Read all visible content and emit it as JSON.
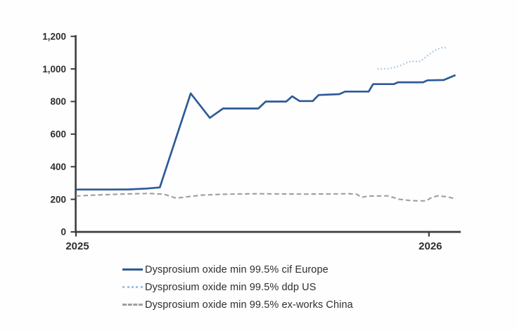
{
  "chart_data": {
    "type": "line",
    "title": "",
    "xlabel": "",
    "ylabel": "",
    "x_unit": "months since Jan 2025",
    "xlim": [
      0,
      13.08
    ],
    "ylim": [
      0,
      1200
    ],
    "grid": false,
    "legend_position": "bottom",
    "axis_color": "#3d3d3d",
    "text_color": "#2e2e2e",
    "y_ticks": [
      {
        "value": 0,
        "label": "0"
      },
      {
        "value": 200,
        "label": "200"
      },
      {
        "value": 400,
        "label": "400"
      },
      {
        "value": 600,
        "label": "600"
      },
      {
        "value": 800,
        "label": "800"
      },
      {
        "value": 1000,
        "label": "1,000"
      },
      {
        "value": 1200,
        "label": "1,200"
      }
    ],
    "x_ticks": [
      {
        "value": 0,
        "label": "2025"
      },
      {
        "value": 12,
        "label": "2026"
      }
    ],
    "series": [
      {
        "name": "Dysprosium oxide min 99.5% cif Europe",
        "line_style": "solid",
        "color": "#2e5a97",
        "width": 2.7,
        "points": [
          [
            0,
            260
          ],
          [
            0.6,
            260
          ],
          [
            1.2,
            260
          ],
          [
            1.8,
            261
          ],
          [
            2.4,
            266
          ],
          [
            2.85,
            273
          ],
          [
            3.9,
            850
          ],
          [
            4.55,
            700
          ],
          [
            5.0,
            757
          ],
          [
            5.6,
            757
          ],
          [
            6.2,
            757
          ],
          [
            6.45,
            800
          ],
          [
            7.15,
            800
          ],
          [
            7.35,
            832
          ],
          [
            7.6,
            803
          ],
          [
            8.05,
            803
          ],
          [
            8.25,
            840
          ],
          [
            8.95,
            845
          ],
          [
            9.15,
            861
          ],
          [
            9.95,
            861
          ],
          [
            10.1,
            907
          ],
          [
            10.8,
            907
          ],
          [
            10.95,
            918
          ],
          [
            11.8,
            918
          ],
          [
            11.95,
            930
          ],
          [
            12.5,
            932
          ],
          [
            12.9,
            962
          ]
        ]
      },
      {
        "name": "Dysprosium oxide min 99.5% ddp US",
        "line_style": "dotted",
        "color": "#9cc2e5",
        "width": 2.3,
        "points": [
          [
            10.25,
            1000
          ],
          [
            10.45,
            1000
          ],
          [
            10.65,
            1003
          ],
          [
            10.9,
            1013
          ],
          [
            11.1,
            1026
          ],
          [
            11.3,
            1043
          ],
          [
            11.5,
            1048
          ],
          [
            11.65,
            1043
          ],
          [
            11.8,
            1060
          ],
          [
            12.0,
            1087
          ],
          [
            12.15,
            1108
          ],
          [
            12.3,
            1122
          ],
          [
            12.45,
            1130
          ],
          [
            12.62,
            1130
          ]
        ]
      },
      {
        "name": "Dysprosium oxide min 99.5% ex-works China",
        "line_style": "dashed",
        "color": "#9e9e9e",
        "width": 2.1,
        "points": [
          [
            0,
            220
          ],
          [
            0.5,
            225
          ],
          [
            1.0,
            228
          ],
          [
            1.5,
            232
          ],
          [
            2.0,
            234
          ],
          [
            2.5,
            236
          ],
          [
            3.0,
            231
          ],
          [
            3.4,
            207
          ],
          [
            3.8,
            216
          ],
          [
            4.3,
            226
          ],
          [
            5.0,
            231
          ],
          [
            5.6,
            233
          ],
          [
            6.2,
            234
          ],
          [
            7.0,
            233
          ],
          [
            7.8,
            232
          ],
          [
            8.6,
            233
          ],
          [
            9.3,
            234
          ],
          [
            9.55,
            231
          ],
          [
            9.7,
            212
          ],
          [
            9.95,
            220
          ],
          [
            10.6,
            221
          ],
          [
            11.0,
            200
          ],
          [
            11.4,
            192
          ],
          [
            11.9,
            190
          ],
          [
            12.1,
            212
          ],
          [
            12.3,
            221
          ],
          [
            12.6,
            216
          ],
          [
            12.9,
            203
          ]
        ]
      }
    ]
  }
}
